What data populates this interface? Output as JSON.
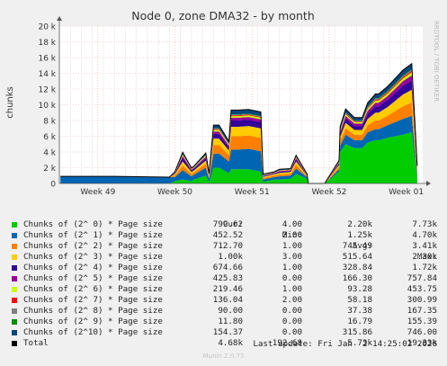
{
  "chart_data": {
    "type": "area",
    "title": "Node 0, zone DMA32 - by month",
    "ylabel": "chunks",
    "side_label": "RRDTOOL / TOBI OETIKER",
    "ylim": [
      0,
      20000
    ],
    "yticks": [
      0,
      2000,
      4000,
      6000,
      8000,
      10000,
      12000,
      14000,
      16000,
      18000,
      20000
    ],
    "ytick_labels": [
      "0",
      "2 k",
      "4 k",
      "6 k",
      "8 k",
      "10 k",
      "12 k",
      "14 k",
      "16 k",
      "18 k",
      "20 k"
    ],
    "xlim": [
      0,
      33
    ],
    "xticks": [
      {
        "label": "Week 49",
        "x": 3.5
      },
      {
        "label": "Week 50",
        "x": 10.5
      },
      {
        "label": "Week 51",
        "x": 17.5
      },
      {
        "label": "Week 52",
        "x": 24.5
      },
      {
        "label": "Week 01",
        "x": 31.5
      }
    ],
    "grid": true,
    "x": [
      0.1,
      5.0,
      10.0,
      10.5,
      11.2,
      12.0,
      12.2,
      13.3,
      13.6,
      14.0,
      14.5,
      15.4,
      15.6,
      16.2,
      17.2,
      18.3,
      18.5,
      19.5,
      20.0,
      21.0,
      21.5,
      22.5,
      22.6,
      23.0,
      24.0,
      24.1,
      25.4,
      25.5,
      26.0,
      26.8,
      27.5,
      28.0,
      28.7,
      29.0,
      29.8,
      30.5,
      31.2,
      32.0,
      32.5
    ],
    "series": [
      {
        "name": "Chunks of (2^ 0) * Page size",
        "color": "#00cc00",
        "values": [
          0,
          0,
          0,
          300,
          500,
          300,
          500,
          1000,
          200,
          2000,
          2000,
          1300,
          1800,
          1800,
          1800,
          1500,
          200,
          500,
          500,
          600,
          1200,
          600,
          0,
          0,
          0,
          0,
          1500,
          4000,
          5000,
          4500,
          4500,
          5200,
          5500,
          5500,
          5800,
          6000,
          6200,
          6500,
          800
        ]
      },
      {
        "name": "Chunks of (2^ 1) * Page size",
        "color": "#0066b3",
        "values": [
          900,
          900,
          800,
          500,
          1200,
          600,
          600,
          1000,
          400,
          1800,
          1800,
          1500,
          2500,
          2500,
          2600,
          2600,
          300,
          300,
          400,
          400,
          700,
          200,
          0,
          0,
          0,
          0,
          300,
          800,
          1200,
          1000,
          1000,
          1300,
          1400,
          1400,
          1600,
          1800,
          2000,
          2100,
          300
        ]
      },
      {
        "name": "Chunks of (2^ 2) * Page size",
        "color": "#ff8000",
        "values": [
          0,
          0,
          0,
          200,
          600,
          300,
          300,
          500,
          200,
          1100,
          1100,
          800,
          1700,
          1700,
          1700,
          1700,
          200,
          200,
          250,
          250,
          500,
          100,
          0,
          0,
          0,
          0,
          300,
          600,
          800,
          700,
          700,
          900,
          1100,
          1100,
          1200,
          1400,
          1600,
          1700,
          300
        ]
      },
      {
        "name": "Chunks of (2^ 3) * Page size",
        "color": "#ffcc00",
        "values": [
          0,
          0,
          0,
          150,
          500,
          250,
          250,
          400,
          150,
          800,
          800,
          600,
          1200,
          1200,
          1200,
          1200,
          150,
          150,
          200,
          200,
          400,
          80,
          0,
          0,
          0,
          0,
          250,
          500,
          700,
          600,
          600,
          800,
          1000,
          1000,
          1100,
          1300,
          1500,
          1600,
          250
        ]
      },
      {
        "name": "Chunks of (2^ 4) * Page size",
        "color": "#330099",
        "values": [
          0,
          0,
          0,
          100,
          500,
          200,
          200,
          300,
          100,
          600,
          600,
          400,
          800,
          800,
          800,
          800,
          100,
          100,
          150,
          150,
          300,
          60,
          0,
          0,
          0,
          0,
          200,
          400,
          550,
          500,
          500,
          650,
          800,
          800,
          900,
          1000,
          1100,
          1200,
          200
        ]
      },
      {
        "name": "Chunks of (2^ 5) * Page size",
        "color": "#990099",
        "values": [
          0,
          0,
          0,
          50,
          200,
          100,
          100,
          200,
          60,
          300,
          300,
          200,
          350,
          350,
          350,
          350,
          60,
          60,
          80,
          80,
          150,
          40,
          0,
          0,
          0,
          0,
          100,
          250,
          350,
          300,
          300,
          400,
          450,
          450,
          500,
          550,
          600,
          650,
          100
        ]
      },
      {
        "name": "Chunks of (2^ 6) * Page size",
        "color": "#ccff00",
        "values": [
          0,
          0,
          0,
          40,
          120,
          60,
          60,
          120,
          40,
          200,
          200,
          120,
          200,
          200,
          200,
          200,
          40,
          40,
          50,
          50,
          80,
          30,
          0,
          0,
          0,
          0,
          60,
          150,
          200,
          180,
          180,
          240,
          280,
          280,
          300,
          320,
          350,
          380,
          60
        ]
      },
      {
        "name": "Chunks of (2^ 7) * Page size",
        "color": "#ff0000",
        "values": [
          0,
          0,
          0,
          20,
          60,
          30,
          30,
          60,
          20,
          100,
          100,
          70,
          100,
          100,
          100,
          100,
          20,
          20,
          25,
          25,
          40,
          15,
          0,
          0,
          0,
          0,
          30,
          80,
          100,
          90,
          90,
          120,
          140,
          140,
          150,
          160,
          170,
          180,
          30
        ]
      },
      {
        "name": "Chunks of (2^ 8) * Page size",
        "color": "#808080",
        "values": [
          0,
          0,
          0,
          15,
          40,
          20,
          20,
          40,
          15,
          60,
          60,
          40,
          60,
          60,
          60,
          60,
          15,
          15,
          20,
          20,
          25,
          10,
          0,
          0,
          0,
          0,
          20,
          50,
          60,
          55,
          55,
          70,
          80,
          80,
          85,
          90,
          95,
          100,
          20
        ]
      },
      {
        "name": "Chunks of (2^ 9) * Page size",
        "color": "#008f00",
        "values": [
          0,
          0,
          0,
          10,
          40,
          20,
          20,
          40,
          10,
          60,
          60,
          40,
          60,
          60,
          60,
          60,
          10,
          10,
          15,
          15,
          20,
          8,
          0,
          0,
          0,
          0,
          15,
          40,
          50,
          45,
          45,
          60,
          70,
          70,
          75,
          80,
          85,
          90,
          15
        ]
      },
      {
        "name": "Chunks of (2^10) * Page size",
        "color": "#00487d",
        "values": [
          0,
          0,
          0,
          100,
          200,
          100,
          100,
          200,
          80,
          400,
          400,
          300,
          500,
          500,
          500,
          500,
          80,
          80,
          100,
          100,
          150,
          50,
          0,
          0,
          0,
          0,
          150,
          350,
          450,
          400,
          400,
          500,
          550,
          550,
          600,
          650,
          700,
          720,
          150
        ]
      }
    ],
    "total": {
      "name": "Total",
      "color": "#000000",
      "values": [
        900,
        900,
        800,
        1485,
        3960,
        1980,
        2180,
        3860,
        1275,
        7420,
        7420,
        5370,
        9330,
        9330,
        9410,
        9090,
        1175,
        1475,
        1790,
        1890,
        3565,
        1193,
        0,
        0,
        0,
        0,
        2925,
        7220,
        9460,
        8370,
        8370,
        10240,
        11375,
        11375,
        12310,
        13350,
        14400,
        15220,
        2225
      ]
    },
    "legend_header": {
      "cur": "Cur:",
      "min": "Min:",
      "avg": "Avg:",
      "max": "Max:"
    },
    "legend": [
      {
        "name": "Chunks of (2^ 0) * Page size",
        "color": "#00cc00",
        "cur": "799.62",
        "min": "4.00",
        "avg": "2.20k",
        "max": "7.73k"
      },
      {
        "name": "Chunks of (2^ 1) * Page size",
        "color": "#0066b3",
        "cur": "452.52",
        "min": "2.00",
        "avg": "1.25k",
        "max": "4.70k"
      },
      {
        "name": "Chunks of (2^ 2) * Page size",
        "color": "#ff8000",
        "cur": "712.70",
        "min": "1.00",
        "avg": "745.49",
        "max": "3.41k"
      },
      {
        "name": "Chunks of (2^ 3) * Page size",
        "color": "#ffcc00",
        "cur": "1.00k",
        "min": "3.00",
        "avg": "515.64",
        "max": "2.30k"
      },
      {
        "name": "Chunks of (2^ 4) * Page size",
        "color": "#330099",
        "cur": "674.66",
        "min": "1.00",
        "avg": "328.84",
        "max": "1.72k"
      },
      {
        "name": "Chunks of (2^ 5) * Page size",
        "color": "#990099",
        "cur": "425.83",
        "min": "0.00",
        "avg": "166.30",
        "max": "757.84"
      },
      {
        "name": "Chunks of (2^ 6) * Page size",
        "color": "#ccff00",
        "cur": "219.46",
        "min": "1.00",
        "avg": "93.28",
        "max": "453.75"
      },
      {
        "name": "Chunks of (2^ 7) * Page size",
        "color": "#ff0000",
        "cur": "136.04",
        "min": "2.00",
        "avg": "58.18",
        "max": "300.99"
      },
      {
        "name": "Chunks of (2^ 8) * Page size",
        "color": "#808080",
        "cur": "90.00",
        "min": "0.00",
        "avg": "37.38",
        "max": "167.35"
      },
      {
        "name": "Chunks of (2^ 9) * Page size",
        "color": "#008f00",
        "cur": "11.80",
        "min": "0.00",
        "avg": "16.79",
        "max": "155.39"
      },
      {
        "name": "Chunks of (2^10) * Page size",
        "color": "#00487d",
        "cur": "154.37",
        "min": "0.00",
        "avg": "315.86",
        "max": "746.00"
      },
      {
        "name": "Total",
        "color": "#000000",
        "cur": "4.68k",
        "min": "192.68",
        "avg": "5.73k",
        "max": "19.33k"
      }
    ],
    "last_update": "Last update: Fri Jan  2 14:25:02 2026",
    "version": "Munin 2.0.73"
  }
}
